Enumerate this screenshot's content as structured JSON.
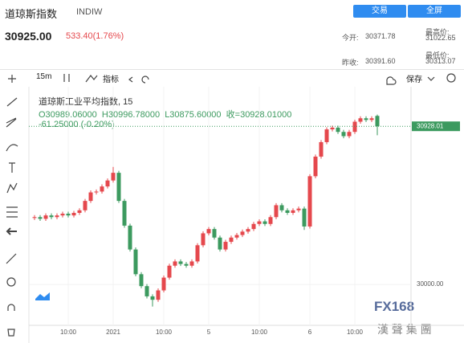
{
  "header": {
    "title": "道琼斯指数",
    "symbol": "INDIW",
    "trade_button": "交易",
    "fullscreen_button": "全屏",
    "price": "30925.00",
    "change": "533.40(1.76%)",
    "stats": [
      {
        "label": "今开:",
        "value": "30371.78"
      },
      {
        "label": "最高价:",
        "value": "31022.65"
      },
      {
        "label": "昨收:",
        "value": "30391.60"
      },
      {
        "label": "最低价:",
        "value": "30313.07"
      }
    ]
  },
  "toolbar": {
    "interval": "15m",
    "indicators": "指标",
    "save": "保存"
  },
  "legend": {
    "name": "道琼斯工业平均指数, 15",
    "ohlc": "O30989.06000  H30996.78000  L30875.60000  收=30928.01000",
    "change": "-61.25000 (-0.20%)"
  },
  "watermark": {
    "logo": "FX168",
    "text": "漢 聲 集 團"
  },
  "chart_data": {
    "type": "candlestick",
    "up_color": "#e5484d",
    "down_color": "#3c9a5f",
    "categories": [
      null,
      null,
      null,
      null,
      null,
      null,
      "10:00",
      null,
      null,
      null,
      null,
      null,
      null,
      null,
      "2021",
      null,
      null,
      null,
      null,
      null,
      null,
      null,
      null,
      "10:00",
      null,
      null,
      null,
      null,
      null,
      null,
      null,
      "5",
      null,
      null,
      null,
      null,
      null,
      null,
      null,
      null,
      "10:00",
      null,
      null,
      null,
      null,
      null,
      null,
      null,
      null,
      "6",
      null,
      null,
      null,
      null,
      null,
      null,
      null,
      "10:00",
      null,
      null,
      null,
      null
    ],
    "open": [
      30390,
      30395,
      30385,
      30405,
      30395,
      30405,
      30415,
      30405,
      30420,
      30435,
      30490,
      30540,
      30545,
      30575,
      30610,
      30655,
      30490,
      30345,
      30205,
      30060,
      29990,
      29930,
      29910,
      29965,
      30040,
      30110,
      30135,
      30120,
      30110,
      30135,
      30230,
      30300,
      30325,
      30275,
      30205,
      30250,
      30275,
      30290,
      30310,
      30325,
      30355,
      30370,
      30355,
      30395,
      30465,
      30435,
      30420,
      30435,
      30445,
      30340,
      30635,
      30750,
      30835,
      30910,
      30920,
      30895,
      30870,
      30895,
      30955,
      30975,
      30965,
      30989.06
    ],
    "high": [
      30407,
      30407,
      30417,
      30417,
      30417,
      30427,
      30427,
      30432,
      30447,
      30502,
      30552,
      30557,
      30587,
      30622,
      30690,
      30667,
      30502,
      30357,
      30217,
      30072,
      30002,
      29942,
      29977,
      30052,
      30122,
      30147,
      30147,
      30132,
      30147,
      30242,
      30312,
      30337,
      30337,
      30287,
      30262,
      30287,
      30302,
      30322,
      30337,
      30367,
      30382,
      30382,
      30407,
      30477,
      30477,
      30447,
      30447,
      30457,
      30457,
      30647,
      30762,
      30847,
      30922,
      30932,
      30932,
      30907,
      30907,
      30967,
      30987,
      30987,
      30987,
      30996.78
    ],
    "low": [
      30378,
      30373,
      30373,
      30383,
      30383,
      30393,
      30393,
      30393,
      30408,
      30423,
      30478,
      30528,
      30533,
      30563,
      30598,
      30478,
      30333,
      30193,
      30048,
      29978,
      29918,
      29870,
      29898,
      29953,
      30028,
      30098,
      30108,
      30098,
      30098,
      30123,
      30218,
      30288,
      30263,
      30193,
      30193,
      30238,
      30263,
      30278,
      30298,
      30313,
      30343,
      30343,
      30343,
      30383,
      30423,
      30408,
      30408,
      30423,
      30320,
      30328,
      30623,
      30738,
      30823,
      30898,
      30883,
      30858,
      30858,
      30883,
      30943,
      30953,
      30953,
      30875.6
    ],
    "close": [
      30395,
      30385,
      30405,
      30395,
      30405,
      30415,
      30405,
      30420,
      30435,
      30490,
      30540,
      30545,
      30575,
      30610,
      30655,
      30490,
      30345,
      30205,
      30060,
      29990,
      29930,
      29910,
      29965,
      30040,
      30110,
      30135,
      30120,
      30110,
      30135,
      30230,
      30300,
      30325,
      30275,
      30205,
      30250,
      30275,
      30290,
      30310,
      30325,
      30355,
      30370,
      30355,
      30395,
      30465,
      30435,
      30420,
      30435,
      30445,
      30340,
      30635,
      30750,
      30835,
      30910,
      30920,
      30895,
      30870,
      30895,
      30955,
      30975,
      30965,
      30975,
      30928.01
    ],
    "ylim": [
      29760,
      31160
    ],
    "yticks": [
      {
        "value": 30000,
        "label": "30000.00"
      }
    ],
    "last_price": {
      "value": 30928.01,
      "label": "30928.01"
    }
  }
}
